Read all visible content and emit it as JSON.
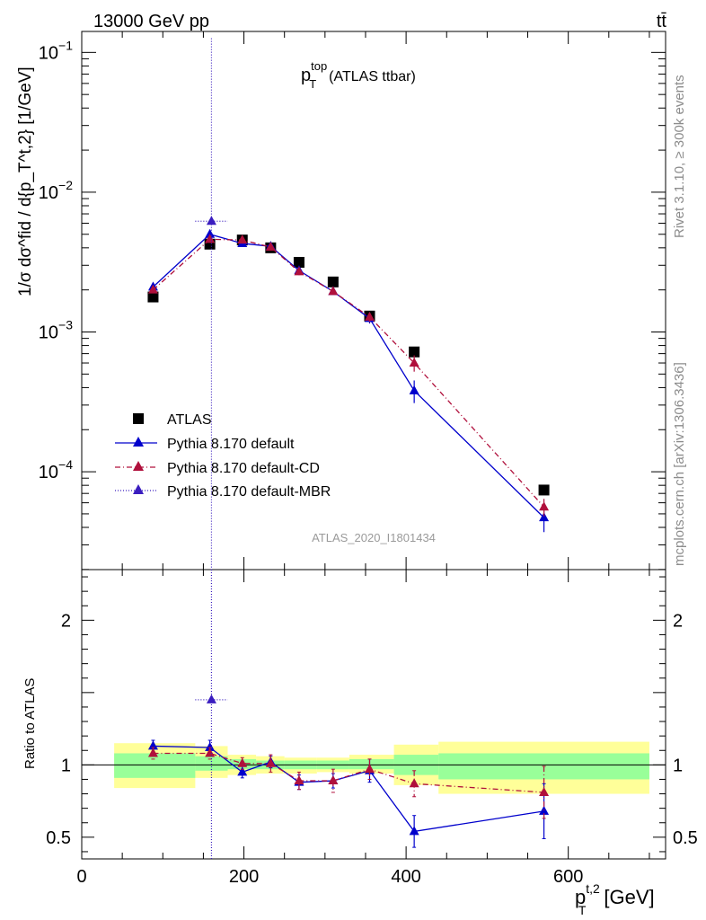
{
  "header": {
    "energy_label": "13000 GeV pp",
    "process_label": "tt̄"
  },
  "side_labels": {
    "rivet": "Rivet 3.1.10, ≥ 300k events",
    "mcplots": "mcplots.cern.ch [arXiv:1306.3436]"
  },
  "analysis_label": "ATLAS_2020_I1801434",
  "chart_data": [
    {
      "type": "line",
      "panel": "main",
      "title": "p_T^top (ATLAS ttbar)",
      "title_parts": {
        "symbol": "p",
        "sup": "top",
        "sub": "T",
        "rest": "(ATLAS ttbar)"
      },
      "ylabel": "1/σ dσ^fid / d{p_T^t,2} [1/GeV]",
      "xlim": [
        0,
        720
      ],
      "ylim_log10": [
        -4.7,
        -0.85
      ],
      "y_scale": "log",
      "y_ticks": [
        {
          "value": 0.1,
          "label_base": "10",
          "label_exp": "−1"
        },
        {
          "value": 0.01,
          "label_base": "10",
          "label_exp": "−2"
        },
        {
          "value": 0.001,
          "label_base": "10",
          "label_exp": "−3"
        },
        {
          "value": 0.0001,
          "label_base": "10",
          "label_exp": "−4"
        }
      ],
      "legend_position": "lower-left",
      "series": [
        {
          "name": "ATLAS",
          "marker": "square",
          "color": "#000000",
          "line": "none",
          "points": [
            {
              "x": 88,
              "y": 0.00178
            },
            {
              "x": 158,
              "y": 0.00425
            },
            {
              "x": 198,
              "y": 0.00455
            },
            {
              "x": 233,
              "y": 0.004
            },
            {
              "x": 268,
              "y": 0.00315
            },
            {
              "x": 310,
              "y": 0.00228
            },
            {
              "x": 355,
              "y": 0.0013
            },
            {
              "x": 410,
              "y": 0.00072
            },
            {
              "x": 570,
              "y": 7.4e-05
            }
          ]
        },
        {
          "name": "Pythia 8.170 default",
          "marker": "triangle",
          "color": "#0000cc",
          "line": "solid",
          "points": [
            {
              "x": 88,
              "y": 0.0021,
              "err": 0.0001
            },
            {
              "x": 158,
              "y": 0.005,
              "err": 0.0002
            },
            {
              "x": 198,
              "y": 0.0043,
              "err": 0.0002
            },
            {
              "x": 233,
              "y": 0.0041,
              "err": 0.0002
            },
            {
              "x": 268,
              "y": 0.00275,
              "err": 0.00015
            },
            {
              "x": 310,
              "y": 0.00195,
              "err": 0.0001
            },
            {
              "x": 355,
              "y": 0.00125,
              "err": 0.0001
            },
            {
              "x": 410,
              "y": 0.00038,
              "err": 7e-05
            },
            {
              "x": 570,
              "y": 4.7e-05,
              "err": 1e-05
            }
          ]
        },
        {
          "name": "Pythia 8.170 default-CD",
          "marker": "triangle",
          "color": "#b0103c",
          "line": "dashdot",
          "points": [
            {
              "x": 88,
              "y": 0.002,
              "err": 0.0001
            },
            {
              "x": 158,
              "y": 0.0046,
              "err": 0.0002
            },
            {
              "x": 198,
              "y": 0.00455,
              "err": 0.0002
            },
            {
              "x": 233,
              "y": 0.00405,
              "err": 0.0002
            },
            {
              "x": 268,
              "y": 0.0027,
              "err": 0.00015
            },
            {
              "x": 310,
              "y": 0.00195,
              "err": 0.0001
            },
            {
              "x": 355,
              "y": 0.00128,
              "err": 0.0001
            },
            {
              "x": 410,
              "y": 0.0006,
              "err": 8e-05
            },
            {
              "x": 570,
              "y": 5.6e-05,
              "err": 8e-06
            }
          ]
        },
        {
          "name": "Pythia 8.170 default-MBR",
          "marker": "triangle",
          "color": "#3a1dbf",
          "line": "dotted",
          "points": [
            {
              "x": 160,
              "y": 0.0062,
              "xerr": 20,
              "err_up": 0.12,
              "err_down": 1e-07
            }
          ]
        }
      ]
    },
    {
      "type": "line",
      "panel": "ratio",
      "ylabel": "Ratio to ATLAS",
      "xlabel": "p_T^t,2 [GeV]",
      "xlabel_parts": {
        "symbol": "p",
        "sup": "t,2",
        "sub": "T",
        "rest": "[GeV]"
      },
      "xlim": [
        0,
        720
      ],
      "ylim": [
        0.35,
        2.35
      ],
      "x_ticks": [
        0,
        200,
        400,
        600
      ],
      "y_ticks": [
        0.5,
        1,
        2
      ],
      "reference_line": 1,
      "uncertainty_bands": [
        {
          "x0": 40,
          "x1": 140,
          "inner": [
            0.91,
            1.08
          ],
          "outer": [
            0.84,
            1.15
          ]
        },
        {
          "x0": 140,
          "x1": 180,
          "inner": [
            0.96,
            1.06
          ],
          "outer": [
            0.91,
            1.13
          ]
        },
        {
          "x0": 180,
          "x1": 215,
          "inner": [
            0.97,
            1.04
          ],
          "outer": [
            0.93,
            1.07
          ]
        },
        {
          "x0": 215,
          "x1": 250,
          "inner": [
            0.97,
            1.03
          ],
          "outer": [
            0.94,
            1.06
          ]
        },
        {
          "x0": 250,
          "x1": 290,
          "inner": [
            0.97,
            1.03
          ],
          "outer": [
            0.94,
            1.05
          ]
        },
        {
          "x0": 290,
          "x1": 330,
          "inner": [
            0.97,
            1.03
          ],
          "outer": [
            0.95,
            1.05
          ]
        },
        {
          "x0": 330,
          "x1": 385,
          "inner": [
            0.97,
            1.04
          ],
          "outer": [
            0.94,
            1.07
          ]
        },
        {
          "x0": 385,
          "x1": 440,
          "inner": [
            0.93,
            1.07
          ],
          "outer": [
            0.86,
            1.14
          ]
        },
        {
          "x0": 440,
          "x1": 700,
          "inner": [
            0.9,
            1.08
          ],
          "outer": [
            0.8,
            1.16
          ]
        }
      ],
      "series": [
        {
          "name": "Pythia 8.170 default",
          "color": "#0000cc",
          "line": "solid",
          "points": [
            {
              "x": 88,
              "y": 1.13,
              "err": 0.04
            },
            {
              "x": 158,
              "y": 1.12,
              "err": 0.05
            },
            {
              "x": 198,
              "y": 0.95,
              "err": 0.04
            },
            {
              "x": 233,
              "y": 1.02,
              "err": 0.04
            },
            {
              "x": 268,
              "y": 0.88,
              "err": 0.05
            },
            {
              "x": 310,
              "y": 0.89,
              "err": 0.05
            },
            {
              "x": 355,
              "y": 0.96,
              "err": 0.08
            },
            {
              "x": 410,
              "y": 0.54,
              "err": 0.11
            },
            {
              "x": 570,
              "y": 0.68,
              "err": 0.19
            }
          ]
        },
        {
          "name": "Pythia 8.170 default-CD",
          "color": "#b0103c",
          "line": "dashdot",
          "points": [
            {
              "x": 88,
              "y": 1.08,
              "err": 0.04
            },
            {
              "x": 158,
              "y": 1.08,
              "err": 0.04
            },
            {
              "x": 198,
              "y": 1.01,
              "err": 0.04
            },
            {
              "x": 233,
              "y": 1.01,
              "err": 0.06
            },
            {
              "x": 268,
              "y": 0.89,
              "err": 0.06
            },
            {
              "x": 310,
              "y": 0.89,
              "err": 0.08
            },
            {
              "x": 355,
              "y": 0.97,
              "err": 0.07
            },
            {
              "x": 410,
              "y": 0.87,
              "err": 0.09
            },
            {
              "x": 570,
              "y": 0.81,
              "err": 0.18
            }
          ]
        },
        {
          "name": "Pythia 8.170 default-MBR",
          "color": "#3a1dbf",
          "line": "dotted",
          "points": [
            {
              "x": 160,
              "y": 1.45,
              "xerr": 20,
              "err_up": 1.5,
              "err_down": 1.5
            }
          ]
        }
      ]
    }
  ]
}
